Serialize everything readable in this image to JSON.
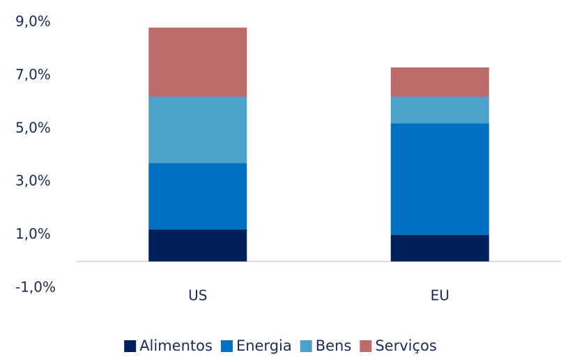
{
  "chart_data": {
    "type": "stacked_bar",
    "categories": [
      "US",
      "EU"
    ],
    "series": [
      {
        "name": "Alimentos",
        "color": "#00205b",
        "values": [
          1.2,
          1.0
        ]
      },
      {
        "name": "Energia",
        "color": "#0070c0",
        "values": [
          2.5,
          4.2
        ]
      },
      {
        "name": "Bens",
        "color": "#4ba3c9",
        "values": [
          2.5,
          1.0
        ]
      },
      {
        "name": "Serviços",
        "color": "#bc6b6b",
        "values": [
          2.6,
          1.1
        ]
      }
    ],
    "ylim": [
      -1,
      9
    ],
    "yticks": [
      {
        "value": -1,
        "label": "-1,0%"
      },
      {
        "value": 1,
        "label": "1,0%"
      },
      {
        "value": 3,
        "label": "3,0%"
      },
      {
        "value": 5,
        "label": "5,0%"
      },
      {
        "value": 7,
        "label": "7,0%"
      },
      {
        "value": 9,
        "label": "9,0%"
      }
    ],
    "grid": false,
    "legend": "bottom"
  }
}
